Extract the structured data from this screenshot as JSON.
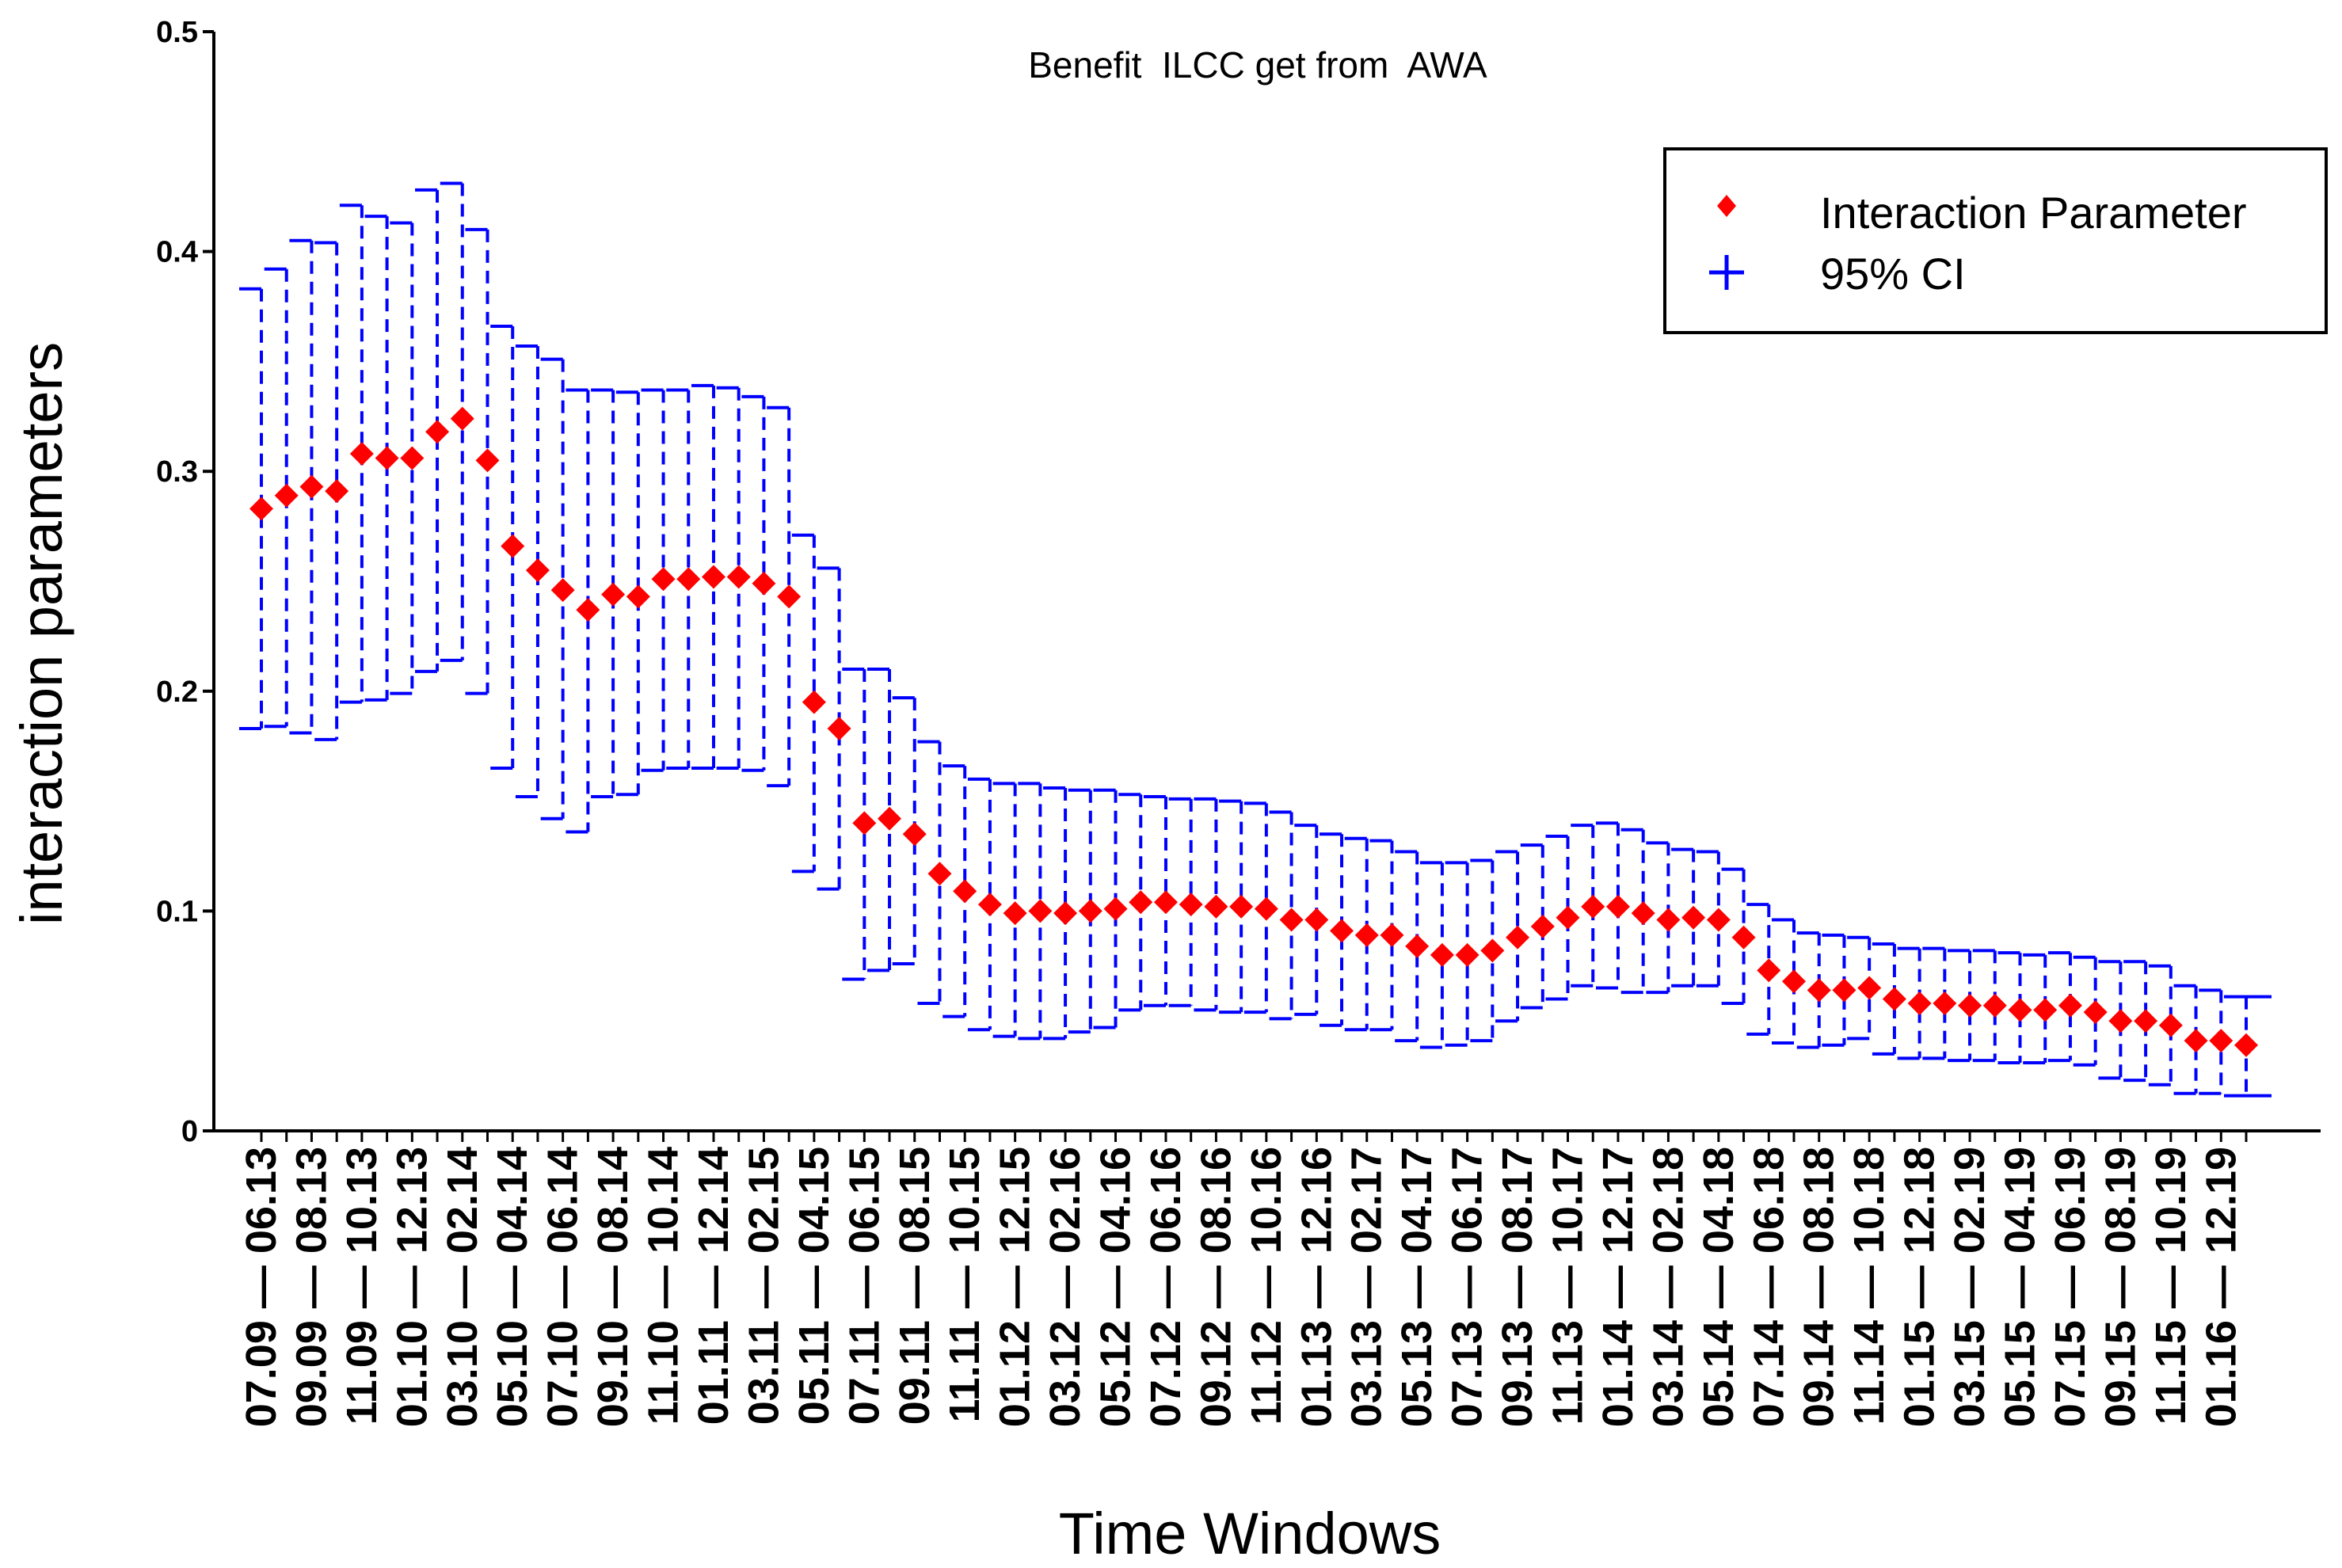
{
  "chart_data": {
    "type": "scatter",
    "title": "Benefit  ILCC get from  AWA",
    "xlabel": "Time Windows",
    "ylabel": "interaction parameters",
    "ylim": [
      0,
      0.5
    ],
    "yticks": [
      "0",
      "0.1",
      "0.2",
      "0.3",
      "0.4",
      "0.5"
    ],
    "colors": {
      "point": "#ff0000",
      "ci": "#0000ff",
      "axis": "#000000"
    },
    "legend": {
      "position": "top-right",
      "entries": [
        {
          "label": "Interaction Parameter",
          "marker": "diamond",
          "color": "#ff0000"
        },
        {
          "label": "95% CI",
          "marker": "plus",
          "color": "#0000ff"
        }
      ]
    },
    "categories": [
      "07.09 — 06.13",
      "09.09 — 08.13",
      "11.09 — 10.13",
      "01.10 — 12.13",
      "03.10 — 02.14",
      "05.10 — 04.14",
      "07.10 — 06.14",
      "09.10 — 08.14",
      "11.10 — 10.14",
      "01.11 — 12.14",
      "03.11 — 02.15",
      "05.11 — 04.15",
      "07.11 — 06.15",
      "09.11 — 08.15",
      "11.11 — 10.15",
      "01.12 — 12.15",
      "03.12 — 02.16",
      "05.12 — 04.16",
      "07.12 — 06.16",
      "09.12 — 08.16",
      "11.12 — 10.16",
      "01.13 — 12.16",
      "03.13 — 02.17",
      "05.13 — 04.17",
      "07.13 — 06.17",
      "09.13 — 08.17",
      "11.13 — 10.17",
      "01.14 — 12.17",
      "03.14 — 02.18",
      "05.14 — 04.18",
      "07.14 — 06.18",
      "09.14 — 08.18",
      "11.14 — 10.18",
      "01.15 — 12.18",
      "03.15 — 02.19",
      "05.15 — 04.19",
      "07.15 — 06.19",
      "09.15 — 08.19",
      "11.15 — 10.19",
      "01.16 — 12.19"
    ],
    "series": [
      {
        "name": "Interaction Parameter",
        "values": [
          0.283,
          0.289,
          0.293,
          0.291,
          0.308,
          0.306,
          0.306,
          0.318,
          0.324,
          0.305,
          0.266,
          0.255,
          0.246,
          0.237,
          0.244,
          0.243,
          0.251,
          0.251,
          0.252,
          0.252,
          0.249,
          0.243,
          0.195,
          0.183,
          0.14,
          0.142,
          0.135,
          0.117,
          0.109,
          0.103,
          0.099,
          0.1,
          0.099,
          0.1,
          0.101,
          0.104,
          0.104,
          0.103,
          0.102,
          0.102,
          0.101,
          0.096,
          0.096,
          0.091,
          0.089,
          0.089,
          0.084,
          0.08,
          0.08,
          0.082,
          0.088,
          0.093,
          0.097,
          0.102,
          0.102,
          0.099,
          0.096,
          0.097,
          0.096,
          0.088,
          0.073,
          0.068,
          0.064,
          0.064,
          0.065,
          0.06,
          0.058,
          0.058,
          0.057,
          0.057,
          0.055,
          0.055,
          0.057,
          0.054,
          0.05,
          0.05,
          0.048,
          0.041,
          0.041,
          0.039
        ]
      },
      {
        "name": "95% CI upper",
        "values": [
          0.383,
          0.392,
          0.405,
          0.404,
          0.421,
          0.416,
          0.413,
          0.428,
          0.431,
          0.41,
          0.366,
          0.357,
          0.351,
          0.337,
          0.337,
          0.336,
          0.337,
          0.337,
          0.339,
          0.338,
          0.334,
          0.329,
          0.271,
          0.256,
          0.21,
          0.21,
          0.197,
          0.177,
          0.166,
          0.16,
          0.158,
          0.158,
          0.156,
          0.155,
          0.155,
          0.153,
          0.152,
          0.151,
          0.151,
          0.15,
          0.149,
          0.145,
          0.139,
          0.135,
          0.133,
          0.132,
          0.127,
          0.122,
          0.122,
          0.123,
          0.127,
          0.13,
          0.134,
          0.139,
          0.14,
          0.137,
          0.131,
          0.128,
          0.127,
          0.119,
          0.103,
          0.096,
          0.09,
          0.089,
          0.088,
          0.085,
          0.083,
          0.083,
          0.082,
          0.082,
          0.081,
          0.08,
          0.081,
          0.079,
          0.077,
          0.077,
          0.075,
          0.066,
          0.064,
          0.061
        ]
      },
      {
        "name": "95% CI lower",
        "values": [
          0.183,
          0.184,
          0.181,
          0.178,
          0.195,
          0.196,
          0.199,
          0.209,
          0.214,
          0.199,
          0.165,
          0.152,
          0.142,
          0.136,
          0.152,
          0.153,
          0.164,
          0.165,
          0.165,
          0.165,
          0.164,
          0.157,
          0.118,
          0.11,
          0.069,
          0.073,
          0.076,
          0.058,
          0.052,
          0.046,
          0.043,
          0.042,
          0.042,
          0.045,
          0.047,
          0.055,
          0.057,
          0.057,
          0.055,
          0.054,
          0.054,
          0.051,
          0.053,
          0.048,
          0.046,
          0.046,
          0.041,
          0.038,
          0.039,
          0.041,
          0.05,
          0.056,
          0.06,
          0.066,
          0.065,
          0.063,
          0.063,
          0.066,
          0.066,
          0.058,
          0.044,
          0.04,
          0.038,
          0.039,
          0.042,
          0.035,
          0.033,
          0.033,
          0.032,
          0.032,
          0.031,
          0.031,
          0.032,
          0.03,
          0.024,
          0.023,
          0.021,
          0.017,
          0.017,
          0.016
        ]
      }
    ]
  }
}
